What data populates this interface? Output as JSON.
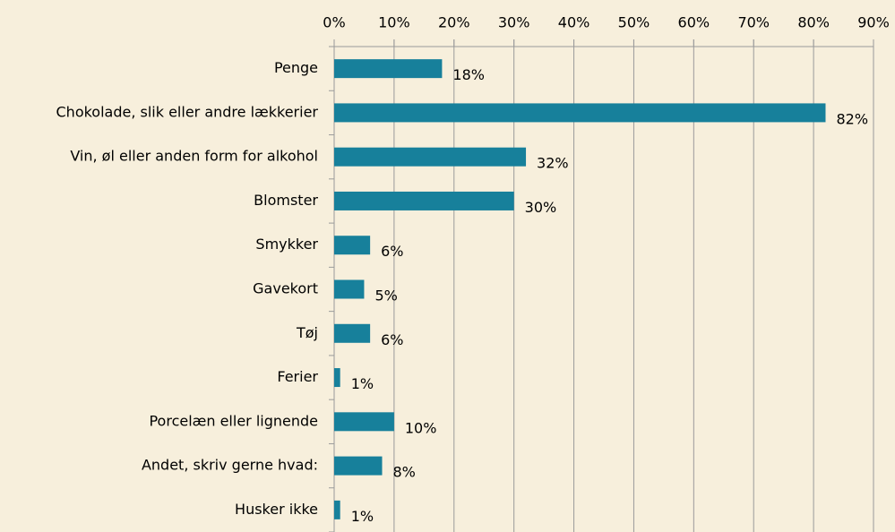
{
  "chart_data": {
    "type": "bar",
    "orientation": "horizontal",
    "categories": [
      "Penge",
      "Chokolade, slik eller andre lækkerier",
      "Vin, øl eller anden form for alkohol",
      "Blomster",
      "Smykker",
      "Gavekort",
      "Tøj",
      "Ferier",
      "Porcelæn eller lignende",
      "Andet, skriv gerne hvad:",
      "Husker ikke"
    ],
    "values": [
      18,
      82,
      32,
      30,
      6,
      5,
      6,
      1,
      10,
      8,
      1
    ],
    "value_labels": [
      "18%",
      "82%",
      "32%",
      "30%",
      "6%",
      "5%",
      "6%",
      "1%",
      "10%",
      "8%",
      "1%"
    ],
    "color": "#17809b",
    "xlim": [
      0,
      90
    ],
    "xticks": [
      {
        "value": 0,
        "label": "0%"
      },
      {
        "value": 10,
        "label": "10%"
      },
      {
        "value": 20,
        "label": "20%"
      },
      {
        "value": 30,
        "label": "30%"
      },
      {
        "value": 40,
        "label": "40%"
      },
      {
        "value": 50,
        "label": "50%"
      },
      {
        "value": 60,
        "label": "60%"
      },
      {
        "value": 70,
        "label": "70%"
      },
      {
        "value": 80,
        "label": "80%"
      },
      {
        "value": 90,
        "label": "90%"
      }
    ],
    "grid": true
  }
}
